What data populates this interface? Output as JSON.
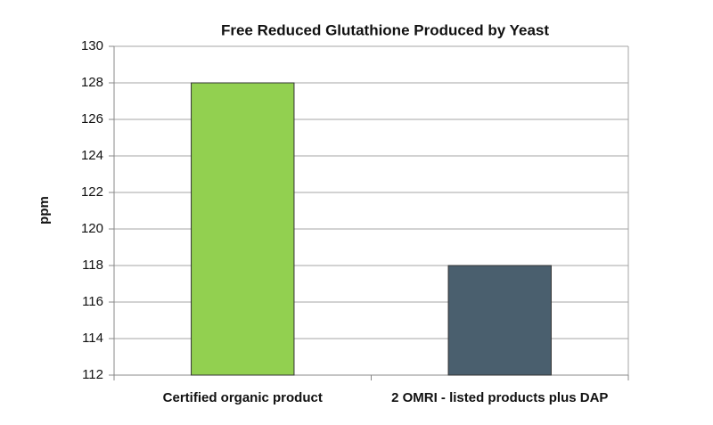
{
  "chart_data": {
    "type": "bar",
    "title": "Free Reduced Glutathione Produced by Yeast",
    "y_label": "ppm",
    "categories": [
      "Certified organic product",
      "2 OMRI - listed products plus DAP"
    ],
    "values": [
      128,
      118
    ],
    "colors": [
      "#92d050",
      "#4a5f6e"
    ],
    "ylim": [
      112,
      130
    ],
    "yticks": [
      112,
      114,
      116,
      118,
      120,
      122,
      124,
      126,
      128,
      130
    ],
    "grid": true
  }
}
